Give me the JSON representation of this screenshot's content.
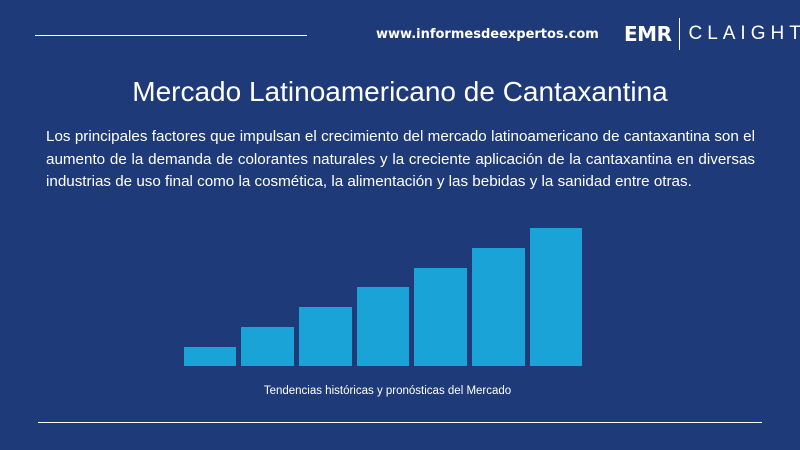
{
  "header": {
    "url": "www.informesdeexpertos.com",
    "logo_left": "EMR",
    "logo_right": "CLAIGHT"
  },
  "title": "Mercado Latinoamericano de Cantaxantina",
  "body": "Los principales factores que impulsan el crecimiento del mercado latinoamericano de cantaxantina son el aumento de la demanda de colorantes naturales y la creciente aplicación de la cantaxantina en diversas industrias de uso final como la cosmética, la alimentación y las bebidas y la sanidad entre otras.",
  "caption": "Tendencias históricas y pronósticas del Mercado"
}
